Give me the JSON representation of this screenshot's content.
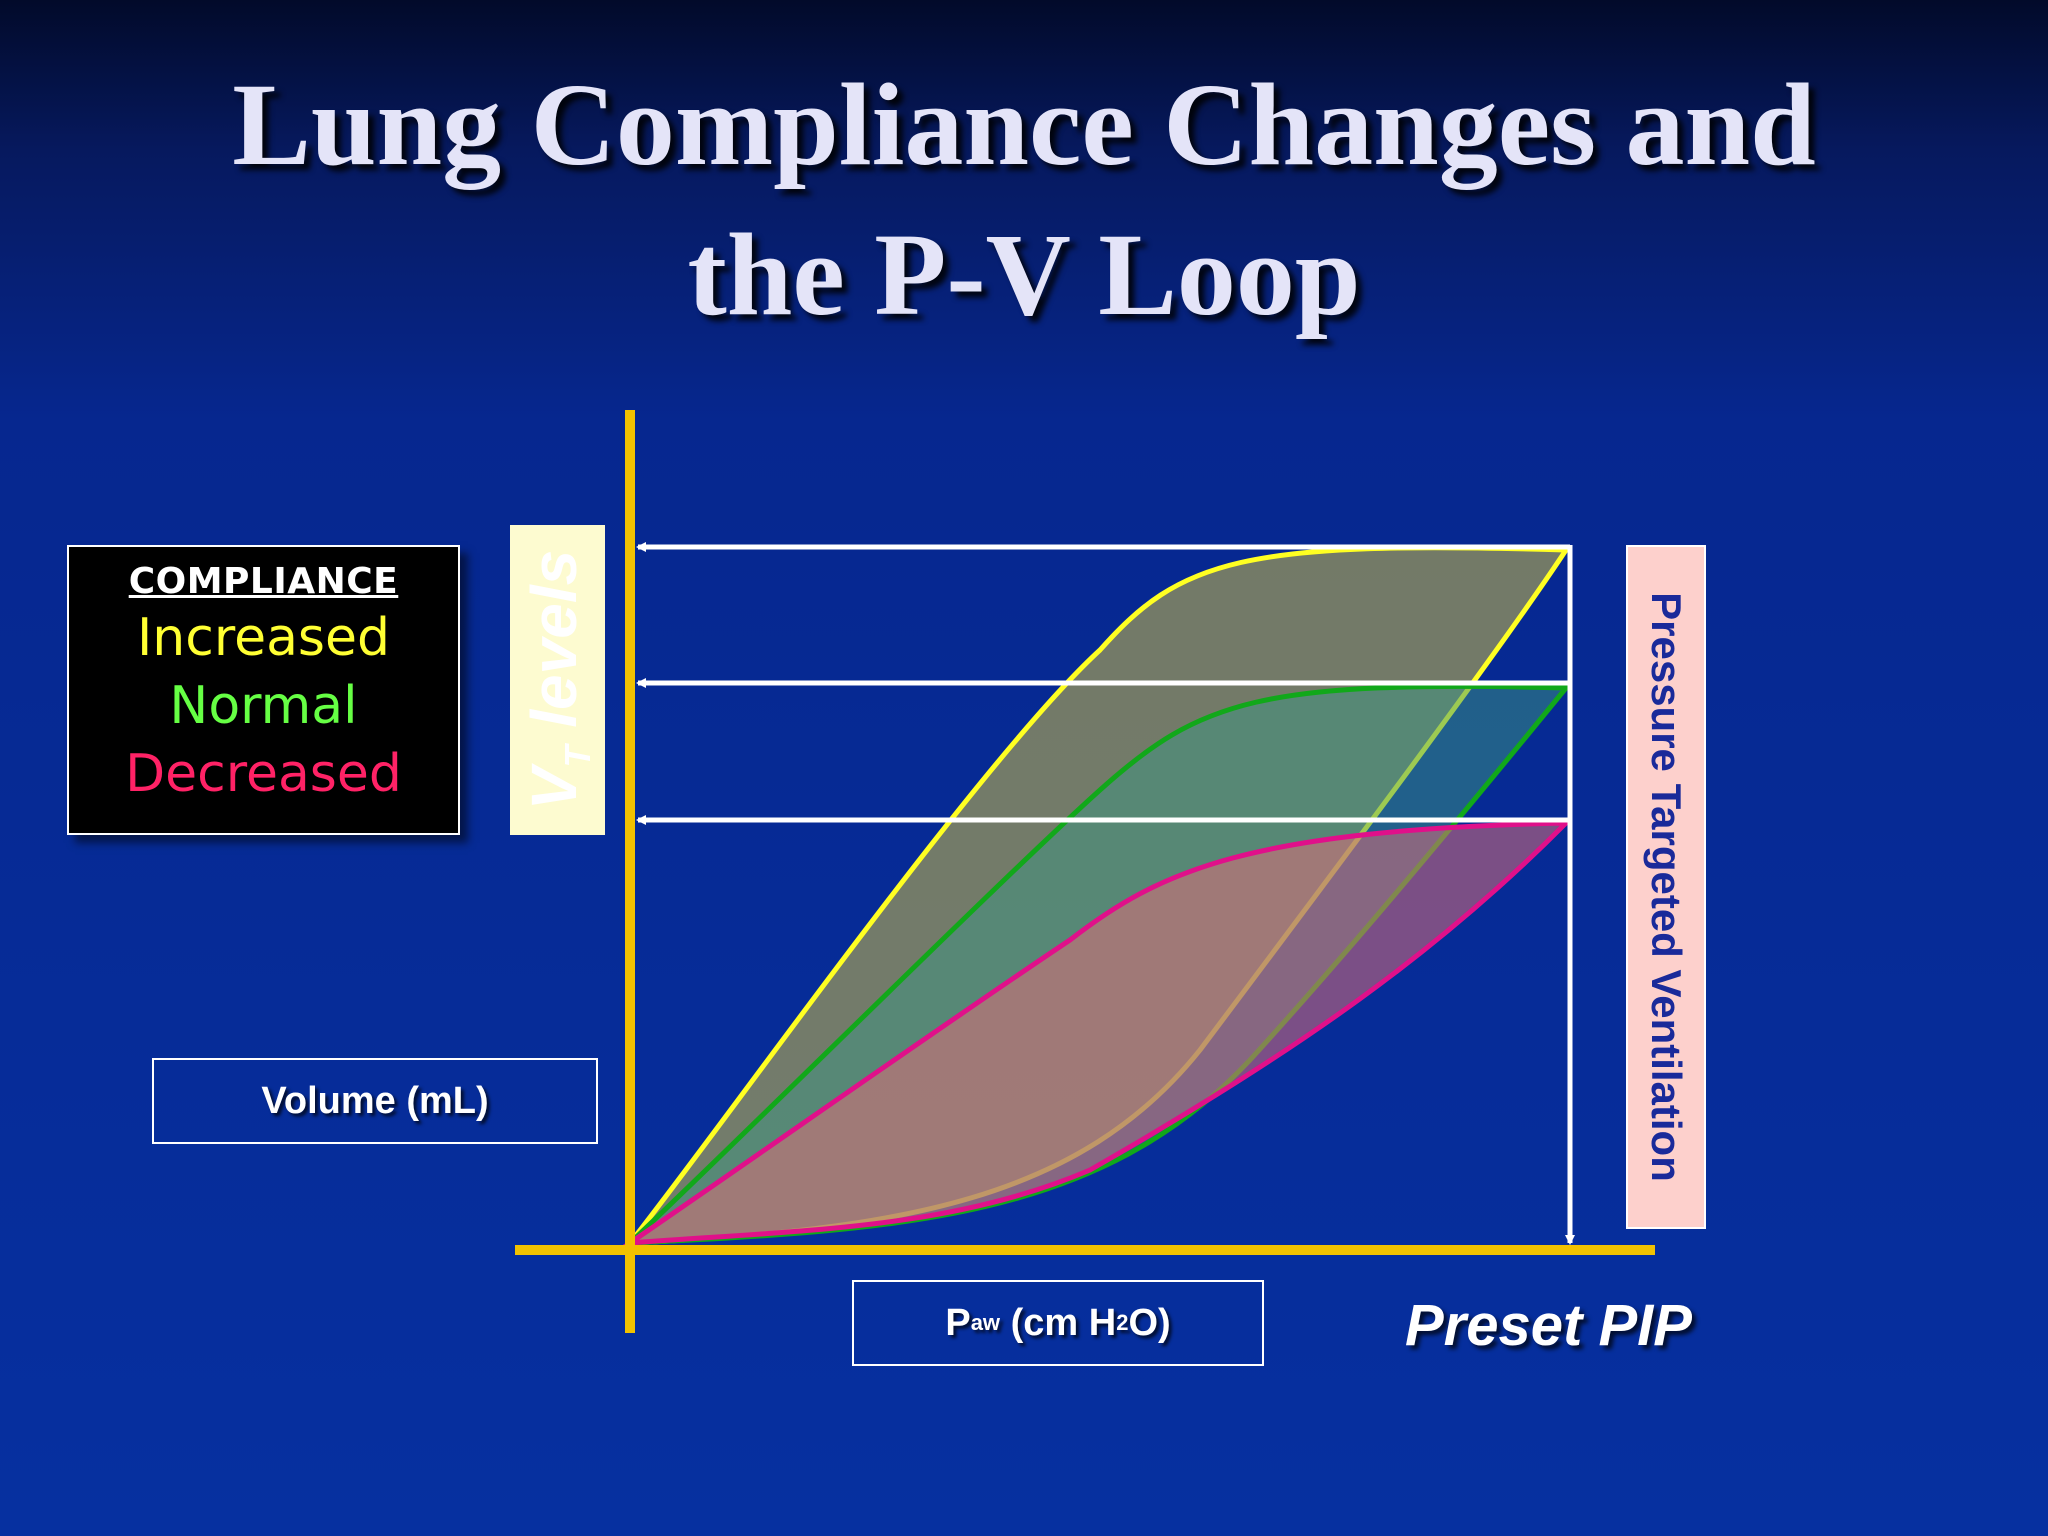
{
  "slide": {
    "title_line1": "Lung Compliance Changes and",
    "title_line2": "the P-V Loop"
  },
  "legend": {
    "title": "COMPLIANCE",
    "items": [
      {
        "label": "Increased",
        "color": "#ffff33"
      },
      {
        "label": "Normal",
        "color": "#66ff44"
      },
      {
        "label": "Decreased",
        "color": "#ff2266"
      }
    ]
  },
  "labels": {
    "volume": "Volume (mL)",
    "paw_main": "P",
    "paw_sub": "aw",
    "paw_mid": " (cm H",
    "paw_sub2": "2",
    "paw_end": "O)",
    "vt_main": "V",
    "vt_sub": "T",
    "vt_rest": " levels",
    "ptv": "Pressure Targeted Ventilation",
    "preset_pip": "Preset PIP"
  },
  "colors": {
    "axis": "#f2c200",
    "increased_loop": "#ffff22",
    "normal_loop": "#11a81a",
    "decreased_loop": "#e0108a",
    "arrows": "#ffffff"
  }
}
